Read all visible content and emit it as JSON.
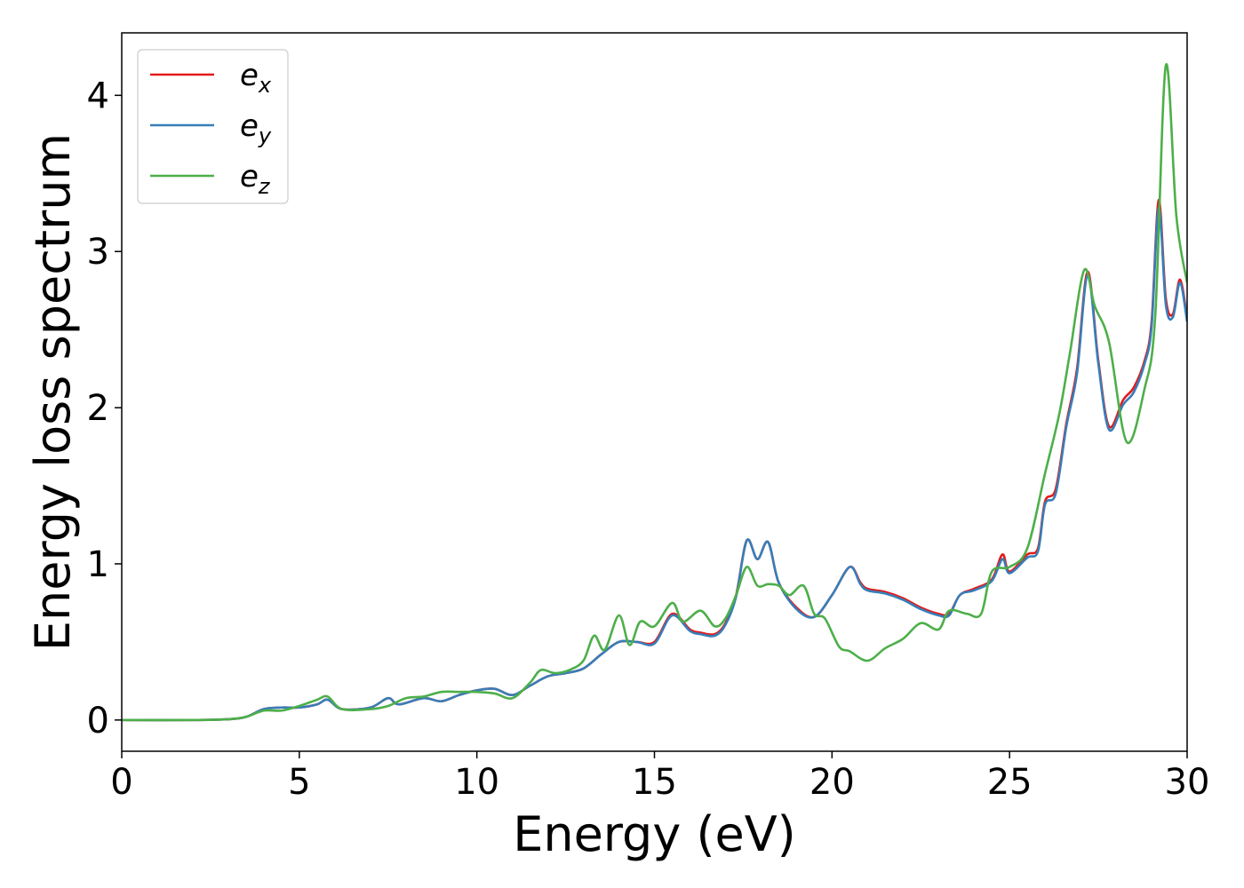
{
  "chart_data": {
    "type": "line",
    "xlabel": "Energy (eV)",
    "ylabel": "Energy loss spectrum",
    "xlim": [
      0,
      30
    ],
    "ylim": [
      -0.2,
      4.4
    ],
    "xticks": [
      0,
      5,
      10,
      15,
      20,
      25,
      30
    ],
    "yticks": [
      0,
      1,
      2,
      3,
      4
    ],
    "grid": false,
    "legend_position": "top-left",
    "series": [
      {
        "name": "e_x",
        "label_base": "e",
        "label_sub": "x",
        "color": "#e41a1c",
        "x": [
          0,
          2,
          3,
          3.5,
          4,
          4.5,
          5,
          5.5,
          5.8,
          6.2,
          7,
          7.5,
          7.8,
          8.5,
          9,
          9.5,
          10,
          10.5,
          11,
          11.5,
          12,
          12.5,
          13,
          13.5,
          14,
          14.5,
          15,
          15.5,
          16,
          16.3,
          16.7,
          17,
          17.3,
          17.6,
          17.9,
          18.2,
          18.5,
          19,
          19.5,
          20,
          20.5,
          20.8,
          21,
          21.5,
          22,
          22.5,
          23,
          23.3,
          23.6,
          24,
          24.5,
          24.8,
          25,
          25.5,
          25.8,
          26,
          26.3,
          26.6,
          26.9,
          27.2,
          27.5,
          27.8,
          28.2,
          28.5,
          28.8,
          29.0,
          29.2,
          29.4,
          29.6,
          29.8,
          30
        ],
        "y": [
          0,
          0,
          0.005,
          0.02,
          0.07,
          0.08,
          0.08,
          0.1,
          0.13,
          0.07,
          0.08,
          0.14,
          0.1,
          0.14,
          0.12,
          0.16,
          0.19,
          0.2,
          0.16,
          0.22,
          0.28,
          0.3,
          0.33,
          0.42,
          0.5,
          0.5,
          0.5,
          0.68,
          0.58,
          0.56,
          0.55,
          0.62,
          0.8,
          1.15,
          1.03,
          1.14,
          0.88,
          0.72,
          0.66,
          0.8,
          0.98,
          0.88,
          0.84,
          0.82,
          0.78,
          0.72,
          0.68,
          0.68,
          0.8,
          0.84,
          0.9,
          1.06,
          0.95,
          1.06,
          1.1,
          1.4,
          1.48,
          1.9,
          2.25,
          2.87,
          2.3,
          1.88,
          2.05,
          2.13,
          2.3,
          2.55,
          3.33,
          2.7,
          2.6,
          2.82,
          2.57
        ]
      },
      {
        "name": "e_y",
        "label_base": "e",
        "label_sub": "y",
        "color": "#377eb8",
        "x": [
          0,
          2,
          3,
          3.5,
          4,
          4.5,
          5,
          5.5,
          5.8,
          6.2,
          7,
          7.5,
          7.8,
          8.5,
          9,
          9.5,
          10,
          10.5,
          11,
          11.5,
          12,
          12.5,
          13,
          13.5,
          14,
          14.5,
          15,
          15.5,
          16,
          16.3,
          16.7,
          17,
          17.3,
          17.6,
          17.9,
          18.2,
          18.5,
          19,
          19.5,
          20,
          20.5,
          20.8,
          21,
          21.5,
          22,
          22.5,
          23,
          23.3,
          23.6,
          24,
          24.5,
          24.8,
          25,
          25.5,
          25.8,
          26,
          26.3,
          26.6,
          26.9,
          27.2,
          27.5,
          27.8,
          28.2,
          28.5,
          28.8,
          29.0,
          29.2,
          29.4,
          29.6,
          29.8,
          30
        ],
        "y": [
          0,
          0,
          0.005,
          0.02,
          0.07,
          0.08,
          0.08,
          0.1,
          0.13,
          0.07,
          0.08,
          0.14,
          0.1,
          0.14,
          0.12,
          0.16,
          0.19,
          0.2,
          0.16,
          0.22,
          0.28,
          0.3,
          0.33,
          0.42,
          0.5,
          0.5,
          0.49,
          0.67,
          0.57,
          0.55,
          0.54,
          0.61,
          0.79,
          1.15,
          1.03,
          1.14,
          0.88,
          0.71,
          0.66,
          0.8,
          0.98,
          0.87,
          0.83,
          0.81,
          0.77,
          0.71,
          0.67,
          0.67,
          0.8,
          0.83,
          0.89,
          1.03,
          0.94,
          1.04,
          1.08,
          1.38,
          1.45,
          1.88,
          2.22,
          2.85,
          2.28,
          1.86,
          2.02,
          2.1,
          2.28,
          2.52,
          3.28,
          2.66,
          2.58,
          2.8,
          2.55
        ]
      },
      {
        "name": "e_z",
        "label_base": "e",
        "label_sub": "z",
        "color": "#4daf4a",
        "x": [
          0,
          2,
          3,
          3.5,
          4,
          4.5,
          5,
          5.5,
          5.8,
          6.2,
          7,
          7.5,
          8,
          8.5,
          9,
          9.5,
          10,
          10.5,
          11,
          11.5,
          11.8,
          12.2,
          12.6,
          13,
          13.3,
          13.6,
          14,
          14.3,
          14.6,
          15,
          15.5,
          15.8,
          16.3,
          16.7,
          17,
          17.3,
          17.6,
          17.9,
          18.2,
          18.5,
          18.8,
          19.2,
          19.5,
          19.8,
          20.2,
          20.5,
          21,
          21.5,
          22,
          22.5,
          23,
          23.3,
          23.8,
          24.2,
          24.5,
          25,
          25.5,
          26,
          26.4,
          26.7,
          27.1,
          27.4,
          27.8,
          28.3,
          28.8,
          29.1,
          29.4,
          29.7,
          30
        ],
        "y": [
          0,
          0,
          0.005,
          0.02,
          0.06,
          0.06,
          0.09,
          0.13,
          0.15,
          0.07,
          0.07,
          0.09,
          0.14,
          0.15,
          0.18,
          0.18,
          0.18,
          0.17,
          0.14,
          0.24,
          0.32,
          0.3,
          0.32,
          0.38,
          0.54,
          0.45,
          0.67,
          0.48,
          0.63,
          0.6,
          0.75,
          0.63,
          0.7,
          0.6,
          0.65,
          0.8,
          0.98,
          0.86,
          0.87,
          0.86,
          0.8,
          0.86,
          0.68,
          0.65,
          0.47,
          0.44,
          0.38,
          0.46,
          0.52,
          0.62,
          0.58,
          0.7,
          0.68,
          0.68,
          0.95,
          0.98,
          1.1,
          1.58,
          1.96,
          2.35,
          2.88,
          2.65,
          2.42,
          1.78,
          2.12,
          2.58,
          4.19,
          3.22,
          2.8
        ]
      }
    ]
  }
}
